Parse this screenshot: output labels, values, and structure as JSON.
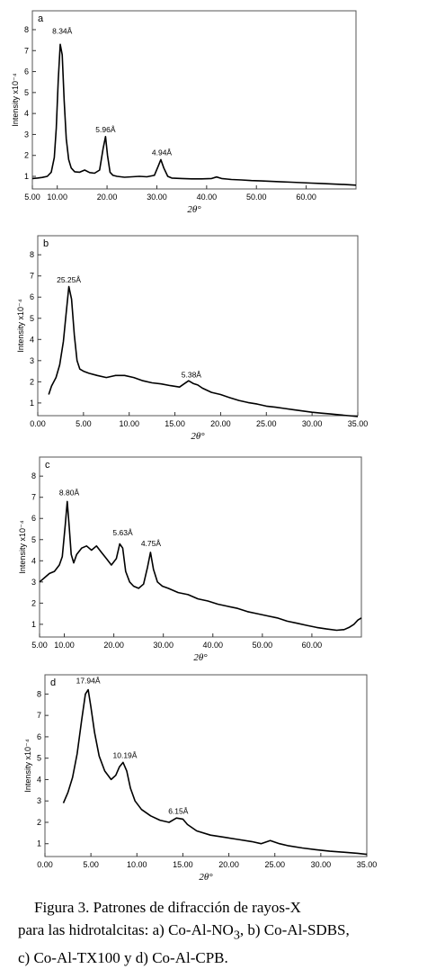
{
  "chart_data": [
    {
      "type": "line",
      "panel_label": "a",
      "xlabel": "2θ°",
      "ylabel": "Intensity x10⁻⁴",
      "xlim": [
        5,
        70
      ],
      "ylim": [
        0.4,
        8.9
      ],
      "xticks": [
        "5.00",
        "10.00",
        "20.00",
        "30.00",
        "40.00",
        "50.00",
        "60.00"
      ],
      "xtick_values": [
        5,
        10,
        20,
        30,
        40,
        50,
        60
      ],
      "yticks": [
        "1",
        "2",
        "3",
        "4",
        "5",
        "6",
        "7",
        "8"
      ],
      "grid": false,
      "series": [
        {
          "x": [
            5,
            6,
            7,
            8,
            8.8,
            9.4,
            9.8,
            10.2,
            10.6,
            11.0,
            11.4,
            11.8,
            12.3,
            12.8,
            13.5,
            14.5,
            15.5,
            16.5,
            17.5,
            18.5,
            19.2,
            19.7,
            20.1,
            20.6,
            21.2,
            22,
            23.5,
            25,
            26.5,
            28,
            29.5,
            30.3,
            30.8,
            31.4,
            32.2,
            33,
            35,
            37,
            39,
            41,
            42,
            43,
            45,
            47,
            49,
            51,
            53,
            55,
            57,
            59,
            61,
            63,
            65,
            67,
            68.5,
            70
          ],
          "y": [
            0.9,
            0.92,
            0.95,
            1.0,
            1.2,
            1.9,
            3.3,
            5.6,
            7.3,
            6.8,
            4.6,
            2.8,
            1.8,
            1.4,
            1.22,
            1.2,
            1.3,
            1.18,
            1.15,
            1.3,
            2.3,
            2.9,
            2.0,
            1.2,
            1.05,
            1.0,
            0.96,
            0.98,
            1.0,
            0.98,
            1.05,
            1.5,
            1.8,
            1.4,
            1.0,
            0.92,
            0.9,
            0.88,
            0.88,
            0.9,
            0.97,
            0.9,
            0.85,
            0.83,
            0.8,
            0.78,
            0.76,
            0.74,
            0.72,
            0.7,
            0.68,
            0.66,
            0.64,
            0.62,
            0.6,
            0.58
          ]
        }
      ],
      "annotations": [
        {
          "text": "8.34Å",
          "x": 11.0,
          "y": 7.8
        },
        {
          "text": "5.96Å",
          "x": 19.7,
          "y": 3.1
        },
        {
          "text": "4.94Å",
          "x": 31.0,
          "y": 2.0
        }
      ]
    },
    {
      "type": "line",
      "panel_label": "b",
      "xlabel": "2θ°",
      "ylabel": "Intensity x10⁻⁴",
      "xlim": [
        0,
        35
      ],
      "ylim": [
        0.4,
        8.9
      ],
      "xticks": [
        "0.00",
        "5.00",
        "10.00",
        "15.00",
        "20.00",
        "25.00",
        "30.00",
        "35.00"
      ],
      "xtick_values": [
        0,
        5,
        10,
        15,
        20,
        25,
        30,
        35
      ],
      "yticks": [
        "1",
        "2",
        "3",
        "4",
        "5",
        "6",
        "7",
        "8"
      ],
      "grid": false,
      "series": [
        {
          "x": [
            1.2,
            1.5,
            2.0,
            2.4,
            2.8,
            3.1,
            3.4,
            3.7,
            4.0,
            4.3,
            4.6,
            5.0,
            5.6,
            6.5,
            7.5,
            8.5,
            9.5,
            10.5,
            11.5,
            12.5,
            13.5,
            14.5,
            15.5,
            16,
            16.5,
            17,
            17.5,
            18,
            19,
            20,
            21,
            22,
            23,
            24,
            25,
            26,
            27,
            28,
            29,
            30,
            31,
            32,
            33,
            34,
            35
          ],
          "y": [
            1.4,
            1.8,
            2.2,
            2.8,
            3.9,
            5.2,
            6.5,
            5.9,
            4.2,
            3.0,
            2.6,
            2.5,
            2.4,
            2.3,
            2.2,
            2.3,
            2.3,
            2.2,
            2.05,
            1.95,
            1.9,
            1.82,
            1.75,
            1.9,
            2.05,
            1.92,
            1.85,
            1.7,
            1.5,
            1.4,
            1.25,
            1.12,
            1.02,
            0.95,
            0.85,
            0.8,
            0.74,
            0.68,
            0.62,
            0.56,
            0.52,
            0.48,
            0.44,
            0.4,
            0.36
          ]
        }
      ],
      "annotations": [
        {
          "text": "25.25Å",
          "x": 3.4,
          "y": 6.7
        },
        {
          "text": "5.38Å",
          "x": 16.8,
          "y": 2.2
        }
      ]
    },
    {
      "type": "line",
      "panel_label": "c",
      "xlabel": "2θ°",
      "ylabel": "Intensity x10⁻⁴",
      "xlim": [
        5,
        70
      ],
      "ylim": [
        0.4,
        8.9
      ],
      "xticks": [
        "5.00",
        "10.00",
        "20.00",
        "30.00",
        "40.00",
        "50.00",
        "60.00"
      ],
      "xtick_values": [
        5,
        10,
        20,
        30,
        40,
        50,
        60
      ],
      "yticks": [
        "1",
        "2",
        "3",
        "4",
        "5",
        "6",
        "7",
        "8"
      ],
      "grid": false,
      "series": [
        {
          "x": [
            5,
            6,
            7,
            8,
            9,
            9.6,
            10.2,
            10.6,
            11.0,
            11.4,
            11.9,
            12.5,
            13.5,
            14.5,
            15.5,
            16.5,
            17.5,
            18.5,
            19.5,
            20.5,
            21.2,
            21.8,
            22.4,
            23.2,
            24,
            25,
            26,
            26.8,
            27.4,
            28,
            28.8,
            29.8,
            31,
            33,
            35,
            37,
            39,
            41,
            43,
            45,
            47,
            49,
            51,
            53,
            55,
            57,
            59,
            61,
            63,
            65,
            66.5,
            67.5,
            68.5,
            69.3,
            70
          ],
          "y": [
            3.0,
            3.2,
            3.4,
            3.5,
            3.8,
            4.2,
            5.7,
            6.8,
            5.6,
            4.3,
            3.9,
            4.3,
            4.6,
            4.7,
            4.5,
            4.7,
            4.4,
            4.1,
            3.8,
            4.1,
            4.8,
            4.6,
            3.5,
            3.0,
            2.8,
            2.7,
            2.9,
            3.7,
            4.4,
            3.6,
            3.0,
            2.8,
            2.7,
            2.5,
            2.4,
            2.2,
            2.1,
            1.95,
            1.85,
            1.75,
            1.6,
            1.5,
            1.4,
            1.3,
            1.15,
            1.05,
            0.95,
            0.85,
            0.78,
            0.72,
            0.75,
            0.85,
            1.0,
            1.2,
            1.3
          ]
        }
      ],
      "annotations": [
        {
          "text": "8.80Å",
          "x": 11.0,
          "y": 7.1
        },
        {
          "text": "5.63Å",
          "x": 21.8,
          "y": 5.2
        },
        {
          "text": "4.75Å",
          "x": 27.5,
          "y": 4.7
        }
      ]
    },
    {
      "type": "line",
      "panel_label": "d",
      "xlabel": "2θ°",
      "ylabel": "Intensity x10⁻⁴",
      "xlim": [
        0,
        35
      ],
      "ylim": [
        0.4,
        8.9
      ],
      "xticks": [
        "0.00",
        "5.00",
        "10.00",
        "15.00",
        "20.00",
        "25.00",
        "30.00",
        "35.00"
      ],
      "xtick_values": [
        0,
        5,
        10,
        15,
        20,
        25,
        30,
        35
      ],
      "yticks": [
        "1",
        "2",
        "3",
        "4",
        "5",
        "6",
        "7",
        "8"
      ],
      "grid": false,
      "series": [
        {
          "x": [
            2.0,
            2.5,
            3.0,
            3.5,
            4.0,
            4.4,
            4.7,
            5.0,
            5.4,
            5.9,
            6.5,
            7.2,
            7.7,
            8.1,
            8.5,
            8.9,
            9.3,
            9.8,
            10.5,
            11.5,
            12.5,
            13.5,
            14.3,
            15,
            15.5,
            16.5,
            18,
            19.5,
            21,
            22.5,
            23.5,
            24.5,
            25.5,
            26.5,
            28,
            29.5,
            31,
            32.5,
            34,
            35
          ],
          "y": [
            2.9,
            3.4,
            4.1,
            5.2,
            6.8,
            8.0,
            8.2,
            7.4,
            6.2,
            5.1,
            4.4,
            4.0,
            4.2,
            4.6,
            4.8,
            4.4,
            3.6,
            3.0,
            2.6,
            2.3,
            2.1,
            2.0,
            2.2,
            2.15,
            1.9,
            1.6,
            1.4,
            1.3,
            1.2,
            1.1,
            1.0,
            1.15,
            1.0,
            0.9,
            0.8,
            0.72,
            0.65,
            0.6,
            0.55,
            0.5
          ]
        }
      ],
      "annotations": [
        {
          "text": "17.94Å",
          "x": 4.7,
          "y": 8.5
        },
        {
          "text": "10.19Å",
          "x": 8.7,
          "y": 5.0
        },
        {
          "text": "6.15Å",
          "x": 14.5,
          "y": 2.4
        }
      ]
    }
  ],
  "caption": {
    "line1": "Figura 3. Patrones de difracción de rayos-X",
    "line2_pre": "para las hidrotalcitas: a) Co-Al-NO",
    "line2_sub": "3",
    "line2_post": ", b) Co-Al-SDBS,",
    "line3": "c) Co-Al-TX100 y d) Co-Al-CPB."
  }
}
